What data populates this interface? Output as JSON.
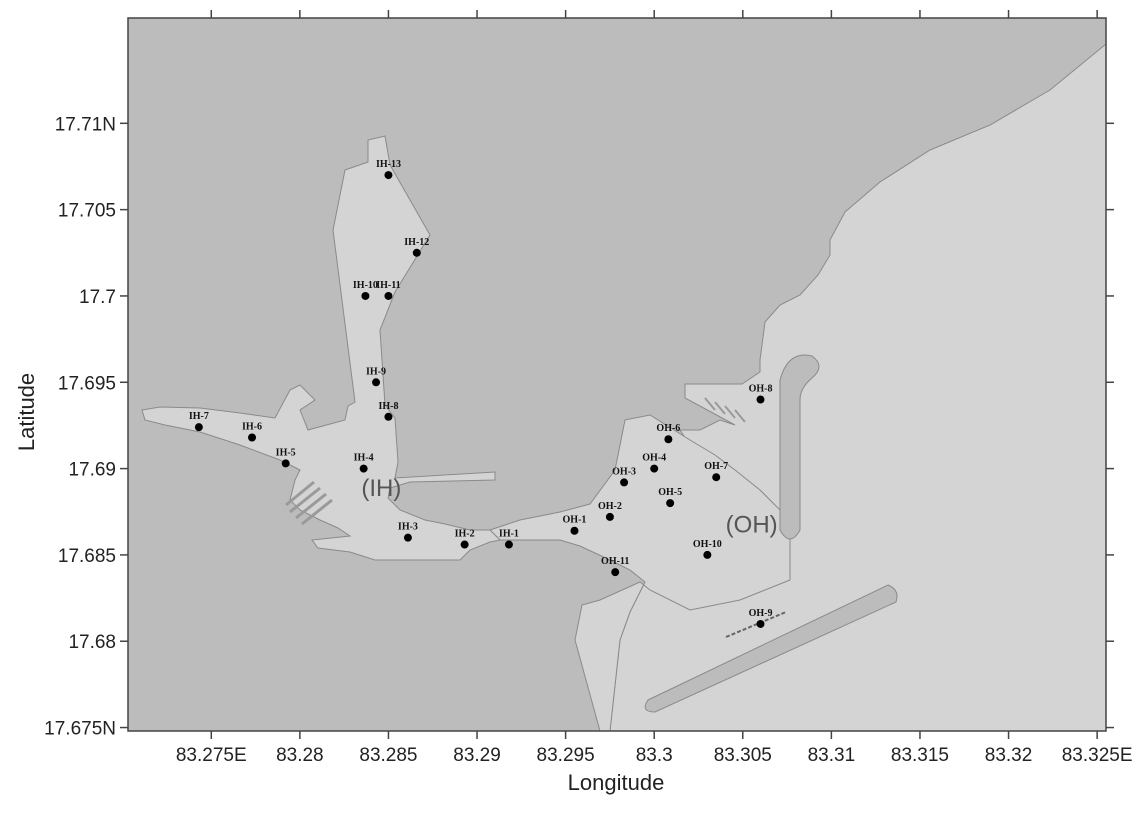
{
  "map": {
    "axes": {
      "xlabel": "Longitude",
      "ylabel": "Latitude",
      "xticks": [
        {
          "value": 83.275,
          "label": "83.275E"
        },
        {
          "value": 83.28,
          "label": "83.28"
        },
        {
          "value": 83.285,
          "label": "83.285"
        },
        {
          "value": 83.29,
          "label": "83.29"
        },
        {
          "value": 83.295,
          "label": "83.295"
        },
        {
          "value": 83.3,
          "label": "83.3"
        },
        {
          "value": 83.305,
          "label": "83.305"
        },
        {
          "value": 83.31,
          "label": "83.31"
        },
        {
          "value": 83.315,
          "label": "83.315"
        },
        {
          "value": 83.32,
          "label": "83.32"
        },
        {
          "value": 83.325,
          "label": "83.325E"
        }
      ],
      "yticks": [
        {
          "value": 17.675,
          "label": "17.675N"
        },
        {
          "value": 17.68,
          "label": "17.68"
        },
        {
          "value": 17.685,
          "label": "17.685"
        },
        {
          "value": 17.69,
          "label": "17.69"
        },
        {
          "value": 17.695,
          "label": "17.695"
        },
        {
          "value": 17.7,
          "label": "17.7"
        },
        {
          "value": 17.705,
          "label": "17.705"
        },
        {
          "value": 17.71,
          "label": "17.71N"
        }
      ],
      "xlim": [
        83.2703,
        83.3255
      ],
      "ylim": [
        17.6748,
        17.7161
      ]
    },
    "colors": {
      "land": "#bcbcbc",
      "water": "#d4d4d4",
      "outline": "#8a8a8a",
      "station": "#000000"
    },
    "areas": [
      {
        "label": "(IH)",
        "lon": 83.2846,
        "lat": 17.6884
      },
      {
        "label": "(OH)",
        "lon": 83.3055,
        "lat": 17.6863
      }
    ],
    "stations": [
      {
        "id": "IH-1",
        "lon": 83.2918,
        "lat": 17.6856
      },
      {
        "id": "IH-2",
        "lon": 83.2893,
        "lat": 17.6856
      },
      {
        "id": "IH-3",
        "lon": 83.2861,
        "lat": 17.686
      },
      {
        "id": "IH-4",
        "lon": 83.2836,
        "lat": 17.69
      },
      {
        "id": "IH-5",
        "lon": 83.2792,
        "lat": 17.6903
      },
      {
        "id": "IH-6",
        "lon": 83.2773,
        "lat": 17.6918
      },
      {
        "id": "IH-7",
        "lon": 83.2743,
        "lat": 17.6924
      },
      {
        "id": "IH-8",
        "lon": 83.285,
        "lat": 17.693
      },
      {
        "id": "IH-9",
        "lon": 83.2843,
        "lat": 17.695
      },
      {
        "id": "IH-10",
        "lon": 83.2837,
        "lat": 17.7
      },
      {
        "id": "IH-11",
        "lon": 83.285,
        "lat": 17.7
      },
      {
        "id": "IH-12",
        "lon": 83.2866,
        "lat": 17.7025
      },
      {
        "id": "IH-13",
        "lon": 83.285,
        "lat": 17.707
      },
      {
        "id": "OH-1",
        "lon": 83.2955,
        "lat": 17.6864
      },
      {
        "id": "OH-2",
        "lon": 83.2975,
        "lat": 17.6872
      },
      {
        "id": "OH-3",
        "lon": 83.2983,
        "lat": 17.6892
      },
      {
        "id": "OH-4",
        "lon": 83.3,
        "lat": 17.69
      },
      {
        "id": "OH-5",
        "lon": 83.3009,
        "lat": 17.688
      },
      {
        "id": "OH-6",
        "lon": 83.3008,
        "lat": 17.6917
      },
      {
        "id": "OH-7",
        "lon": 83.3035,
        "lat": 17.6895
      },
      {
        "id": "OH-8",
        "lon": 83.306,
        "lat": 17.694
      },
      {
        "id": "OH-9",
        "lon": 83.306,
        "lat": 17.681
      },
      {
        "id": "OH-10",
        "lon": 83.303,
        "lat": 17.685
      },
      {
        "id": "OH-11",
        "lon": 83.2978,
        "lat": 17.684
      }
    ]
  }
}
